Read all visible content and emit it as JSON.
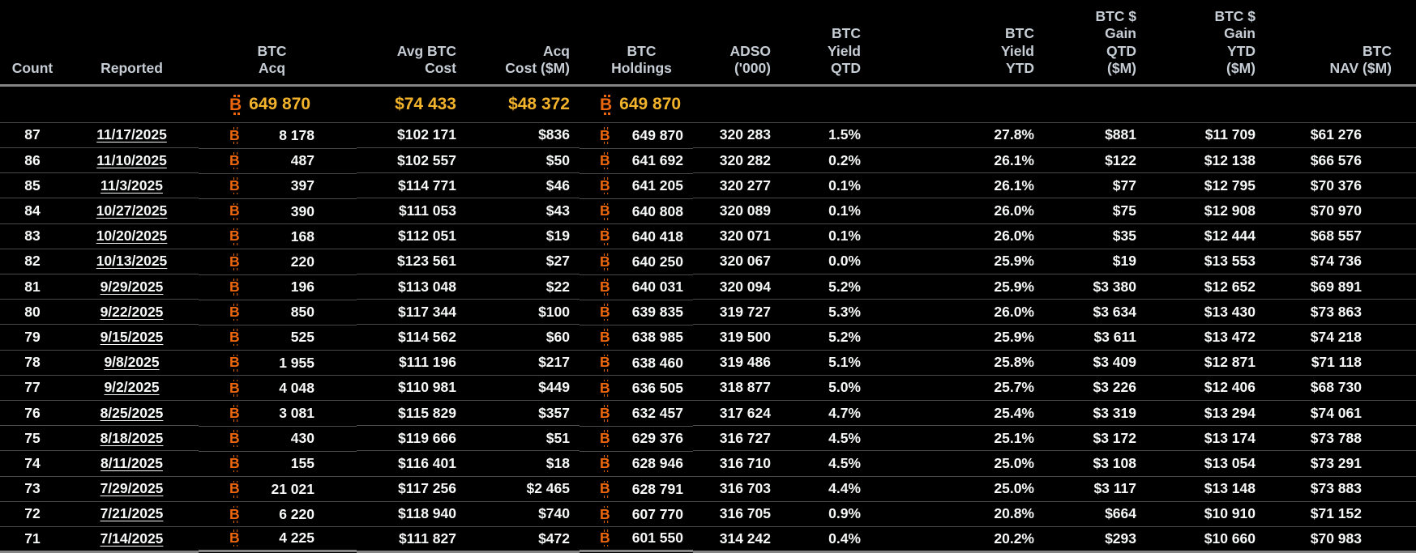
{
  "colors": {
    "background": "#000000",
    "body_text": "#f7f8f8",
    "header_text": "#c6cdd5",
    "accent_orange": "#ec660d",
    "accent_gold": "#f3b32b",
    "row_divider": "#4a4a4a",
    "strong_divider": "#858585"
  },
  "icons": {
    "btc_symbol": "B"
  },
  "table": {
    "columns": [
      "Count",
      "Reported",
      "BTC\nAcq",
      "Avg BTC\nCost",
      "Acq\nCost ($M)",
      "BTC\nHoldings",
      "ADSO ('000)",
      "BTC\nYield QTD",
      "BTC\nYield YTD",
      "BTC $\nGain QTD\n($M)",
      "BTC $\nGain YTD\n($M)",
      "BTC\nNAV ($M)"
    ],
    "summary": {
      "btc_acq": "649 870",
      "avg_cost": "$74 433",
      "acq_cost": "$48 372",
      "holdings": "649 870"
    },
    "rows": [
      {
        "count": "87",
        "reported": "11/17/2025",
        "btc_acq": "8 178",
        "avg_cost": "$102 171",
        "acq_cost": "$836",
        "holdings": "649 870",
        "adso": "320 283",
        "yield_qtd": "1.5%",
        "yield_ytd": "27.8%",
        "gain_qtd": "$881",
        "gain_ytd": "$11 709",
        "nav": "$61 276"
      },
      {
        "count": "86",
        "reported": "11/10/2025",
        "btc_acq": "487",
        "avg_cost": "$102 557",
        "acq_cost": "$50",
        "holdings": "641 692",
        "adso": "320 282",
        "yield_qtd": "0.2%",
        "yield_ytd": "26.1%",
        "gain_qtd": "$122",
        "gain_ytd": "$12 138",
        "nav": "$66 576"
      },
      {
        "count": "85",
        "reported": "11/3/2025",
        "btc_acq": "397",
        "avg_cost": "$114 771",
        "acq_cost": "$46",
        "holdings": "641 205",
        "adso": "320 277",
        "yield_qtd": "0.1%",
        "yield_ytd": "26.1%",
        "gain_qtd": "$77",
        "gain_ytd": "$12 795",
        "nav": "$70 376"
      },
      {
        "count": "84",
        "reported": "10/27/2025",
        "btc_acq": "390",
        "avg_cost": "$111 053",
        "acq_cost": "$43",
        "holdings": "640 808",
        "adso": "320 089",
        "yield_qtd": "0.1%",
        "yield_ytd": "26.0%",
        "gain_qtd": "$75",
        "gain_ytd": "$12 908",
        "nav": "$70 970"
      },
      {
        "count": "83",
        "reported": "10/20/2025",
        "btc_acq": "168",
        "avg_cost": "$112 051",
        "acq_cost": "$19",
        "holdings": "640 418",
        "adso": "320 071",
        "yield_qtd": "0.1%",
        "yield_ytd": "26.0%",
        "gain_qtd": "$35",
        "gain_ytd": "$12 444",
        "nav": "$68 557"
      },
      {
        "count": "82",
        "reported": "10/13/2025",
        "btc_acq": "220",
        "avg_cost": "$123 561",
        "acq_cost": "$27",
        "holdings": "640 250",
        "adso": "320 067",
        "yield_qtd": "0.0%",
        "yield_ytd": "25.9%",
        "gain_qtd": "$19",
        "gain_ytd": "$13 553",
        "nav": "$74 736"
      },
      {
        "count": "81",
        "reported": "9/29/2025",
        "btc_acq": "196",
        "avg_cost": "$113 048",
        "acq_cost": "$22",
        "holdings": "640 031",
        "adso": "320 094",
        "yield_qtd": "5.2%",
        "yield_ytd": "25.9%",
        "gain_qtd": "$3 380",
        "gain_ytd": "$12 652",
        "nav": "$69 891"
      },
      {
        "count": "80",
        "reported": "9/22/2025",
        "btc_acq": "850",
        "avg_cost": "$117 344",
        "acq_cost": "$100",
        "holdings": "639 835",
        "adso": "319 727",
        "yield_qtd": "5.3%",
        "yield_ytd": "26.0%",
        "gain_qtd": "$3 634",
        "gain_ytd": "$13 430",
        "nav": "$73 863"
      },
      {
        "count": "79",
        "reported": "9/15/2025",
        "btc_acq": "525",
        "avg_cost": "$114 562",
        "acq_cost": "$60",
        "holdings": "638 985",
        "adso": "319 500",
        "yield_qtd": "5.2%",
        "yield_ytd": "25.9%",
        "gain_qtd": "$3 611",
        "gain_ytd": "$13 472",
        "nav": "$74 218"
      },
      {
        "count": "78",
        "reported": "9/8/2025",
        "btc_acq": "1 955",
        "avg_cost": "$111 196",
        "acq_cost": "$217",
        "holdings": "638 460",
        "adso": "319 486",
        "yield_qtd": "5.1%",
        "yield_ytd": "25.8%",
        "gain_qtd": "$3 409",
        "gain_ytd": "$12 871",
        "nav": "$71 118"
      },
      {
        "count": "77",
        "reported": "9/2/2025",
        "btc_acq": "4 048",
        "avg_cost": "$110 981",
        "acq_cost": "$449",
        "holdings": "636 505",
        "adso": "318 877",
        "yield_qtd": "5.0%",
        "yield_ytd": "25.7%",
        "gain_qtd": "$3 226",
        "gain_ytd": "$12 406",
        "nav": "$68 730"
      },
      {
        "count": "76",
        "reported": "8/25/2025",
        "btc_acq": "3 081",
        "avg_cost": "$115 829",
        "acq_cost": "$357",
        "holdings": "632 457",
        "adso": "317 624",
        "yield_qtd": "4.7%",
        "yield_ytd": "25.4%",
        "gain_qtd": "$3 319",
        "gain_ytd": "$13 294",
        "nav": "$74 061"
      },
      {
        "count": "75",
        "reported": "8/18/2025",
        "btc_acq": "430",
        "avg_cost": "$119 666",
        "acq_cost": "$51",
        "holdings": "629 376",
        "adso": "316 727",
        "yield_qtd": "4.5%",
        "yield_ytd": "25.1%",
        "gain_qtd": "$3 172",
        "gain_ytd": "$13 174",
        "nav": "$73 788"
      },
      {
        "count": "74",
        "reported": "8/11/2025",
        "btc_acq": "155",
        "avg_cost": "$116 401",
        "acq_cost": "$18",
        "holdings": "628 946",
        "adso": "316 710",
        "yield_qtd": "4.5%",
        "yield_ytd": "25.0%",
        "gain_qtd": "$3 108",
        "gain_ytd": "$13 054",
        "nav": "$73 291"
      },
      {
        "count": "73",
        "reported": "7/29/2025",
        "btc_acq": "21 021",
        "avg_cost": "$117 256",
        "acq_cost": "$2 465",
        "holdings": "628 791",
        "adso": "316 703",
        "yield_qtd": "4.4%",
        "yield_ytd": "25.0%",
        "gain_qtd": "$3 117",
        "gain_ytd": "$13 148",
        "nav": "$73 883"
      },
      {
        "count": "72",
        "reported": "7/21/2025",
        "btc_acq": "6 220",
        "avg_cost": "$118 940",
        "acq_cost": "$740",
        "holdings": "607 770",
        "adso": "316 705",
        "yield_qtd": "0.9%",
        "yield_ytd": "20.8%",
        "gain_qtd": "$664",
        "gain_ytd": "$10 910",
        "nav": "$71 152"
      },
      {
        "count": "71",
        "reported": "7/14/2025",
        "btc_acq": "4 225",
        "avg_cost": "$111 827",
        "acq_cost": "$472",
        "holdings": "601 550",
        "adso": "314 242",
        "yield_qtd": "0.4%",
        "yield_ytd": "20.2%",
        "gain_qtd": "$293",
        "gain_ytd": "$10 660",
        "nav": "$70 983"
      }
    ]
  }
}
